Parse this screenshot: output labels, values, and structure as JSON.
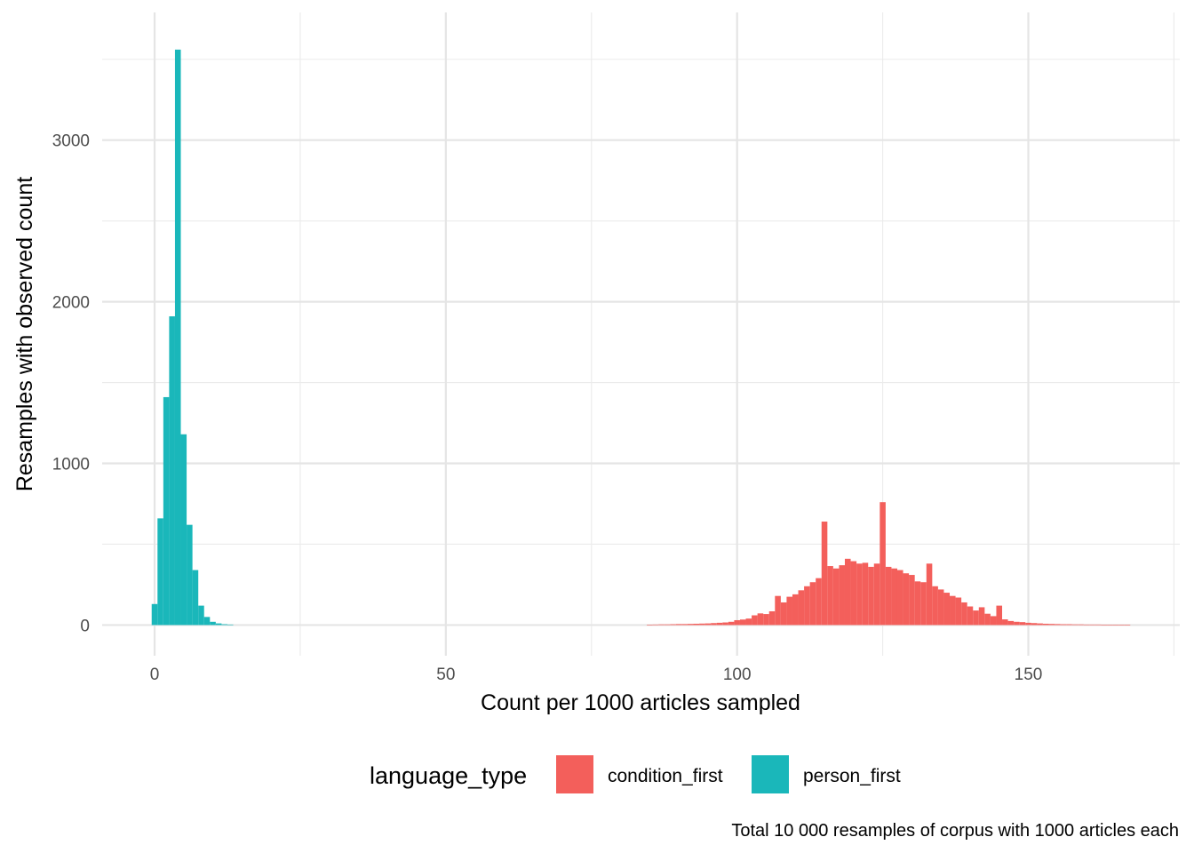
{
  "chart_data": {
    "type": "bar",
    "subtype": "histogram",
    "xlabel": "Count per 1000 articles sampled",
    "ylabel": "Resamples with observed count",
    "caption": "Total 10 000 resamples of corpus with 1000 articles each",
    "xlim": [
      -9,
      176
    ],
    "ylim": [
      -190,
      3790
    ],
    "x_ticks": [
      0,
      50,
      100,
      150
    ],
    "y_ticks": [
      0,
      1000,
      2000,
      3000
    ],
    "x_tick_labels": [
      "0",
      "50",
      "100",
      "150"
    ],
    "y_tick_labels": [
      "0",
      "1000",
      "2000",
      "3000"
    ],
    "bin_width": 1,
    "grid": true,
    "legend": {
      "title": "language_type",
      "position": "bottom",
      "entries": [
        "condition_first",
        "person_first"
      ]
    },
    "series": [
      {
        "name": "person_first",
        "color": "#1AB7BA",
        "x": [
          0,
          1,
          2,
          3,
          4,
          5,
          6,
          7,
          8,
          9,
          10,
          11,
          12,
          13
        ],
        "values": [
          130,
          660,
          1410,
          1910,
          3560,
          1180,
          620,
          340,
          120,
          50,
          20,
          10,
          5,
          3
        ]
      },
      {
        "name": "condition_first",
        "color": "#F35F5B",
        "x": [
          85,
          86,
          87,
          88,
          89,
          90,
          91,
          92,
          93,
          94,
          95,
          96,
          97,
          98,
          99,
          100,
          101,
          102,
          103,
          104,
          105,
          106,
          107,
          108,
          109,
          110,
          111,
          112,
          113,
          114,
          115,
          116,
          117,
          118,
          119,
          120,
          121,
          122,
          123,
          124,
          125,
          126,
          127,
          128,
          129,
          130,
          131,
          132,
          133,
          134,
          135,
          136,
          137,
          138,
          139,
          140,
          141,
          142,
          143,
          144,
          145,
          146,
          147,
          148,
          149,
          150,
          151,
          152,
          153,
          154,
          155,
          156,
          157,
          158,
          159,
          160,
          161,
          162,
          163,
          164,
          165,
          166,
          167
        ],
        "values": [
          2,
          3,
          4,
          4,
          5,
          6,
          6,
          7,
          8,
          9,
          10,
          12,
          14,
          16,
          20,
          30,
          34,
          40,
          60,
          72,
          68,
          85,
          180,
          140,
          175,
          190,
          215,
          240,
          265,
          290,
          640,
          365,
          350,
          370,
          410,
          395,
          380,
          385,
          360,
          380,
          760,
          360,
          350,
          340,
          320,
          310,
          270,
          265,
          380,
          240,
          220,
          200,
          180,
          170,
          140,
          115,
          90,
          110,
          70,
          55,
          120,
          35,
          25,
          20,
          18,
          14,
          12,
          10,
          8,
          7,
          6,
          5,
          5,
          4,
          4,
          3,
          3,
          3,
          2,
          2,
          2,
          2,
          2
        ]
      }
    ]
  }
}
